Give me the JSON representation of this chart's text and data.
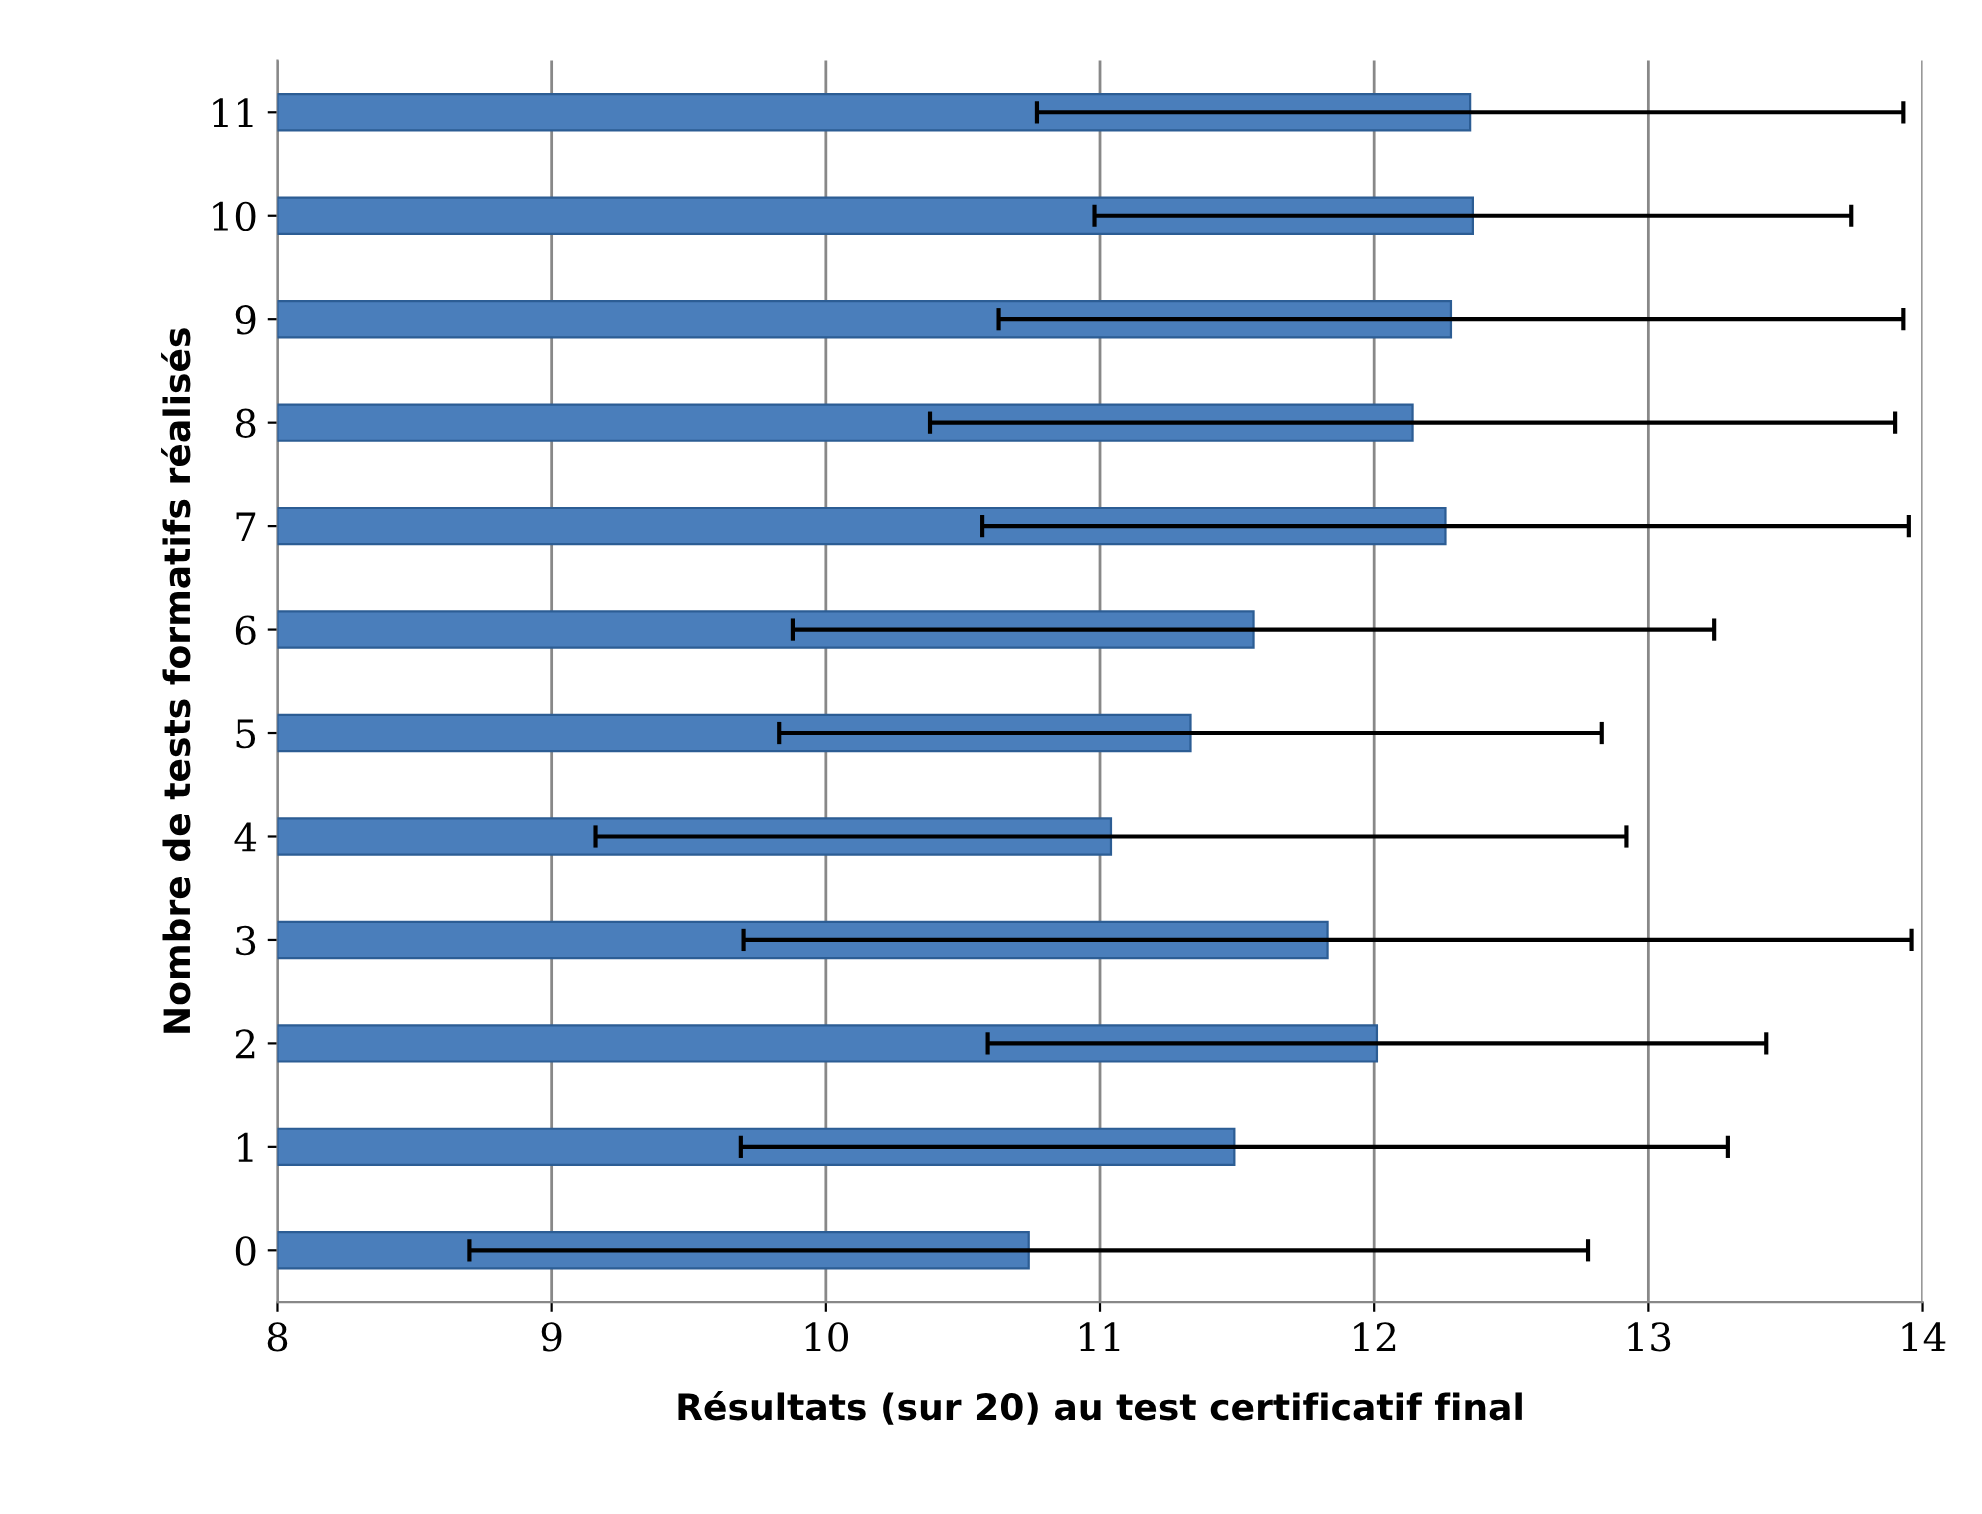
{
  "chart_data": {
    "type": "bar",
    "orientation": "horizontal",
    "xlabel": "Résultats (sur 20) au test certificatif final",
    "ylabel": "Nombre de tests formatifs réalisés",
    "categories": [
      "11",
      "10",
      "9",
      "8",
      "7",
      "6",
      "5",
      "4",
      "3",
      "2",
      "1",
      "0"
    ],
    "values": [
      12.35,
      12.36,
      12.28,
      12.14,
      12.26,
      11.56,
      11.33,
      11.04,
      11.83,
      12.01,
      11.49,
      10.74
    ],
    "errors": [
      1.58,
      1.38,
      1.65,
      1.76,
      1.69,
      1.68,
      1.5,
      1.88,
      2.13,
      1.42,
      1.8,
      2.04
    ],
    "color": "#4a7ebb",
    "xlim": [
      8,
      14
    ],
    "xticks": [
      8,
      9,
      10,
      11,
      12,
      13,
      14
    ],
    "grid": "x",
    "legend": false
  }
}
